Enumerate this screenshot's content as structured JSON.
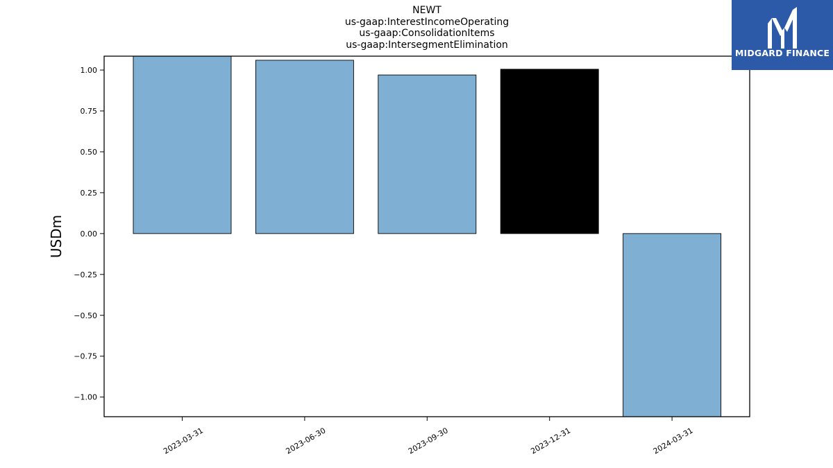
{
  "logo": {
    "text": "MIDGARD FINANCE",
    "icon": "midgard-m-logo-icon",
    "background": "#2c5aa8",
    "foreground": "#ffffff"
  },
  "chart_data": {
    "type": "bar",
    "title_lines": [
      "NEWT",
      "us-gaap:InterestIncomeOperating",
      "us-gaap:ConsolidationItems",
      "us-gaap:IntersegmentElimination"
    ],
    "xlabel": "",
    "ylabel": "USDm",
    "categories": [
      "2023-03-31",
      "2023-06-30",
      "2023-09-30",
      "2023-12-31",
      "2024-03-31"
    ],
    "values": [
      1.085,
      1.06,
      0.97,
      1.005,
      -1.12
    ],
    "bar_colors": [
      "#7fb0d3",
      "#7fb0d3",
      "#7fb0d3",
      "#000000",
      "#7fb0d3"
    ],
    "edge_color": "#000000",
    "ylim": [
      -1.12,
      1.085
    ],
    "yticks": [
      1.0,
      0.75,
      0.5,
      0.25,
      0.0,
      -0.25,
      -0.5,
      -0.75,
      -1.0
    ],
    "ytick_labels": [
      "1.00",
      "0.75",
      "0.50",
      "0.25",
      "0.00",
      "−0.25",
      "−0.50",
      "−0.75",
      "−1.00"
    ],
    "grid": false,
    "legend": "none"
  }
}
